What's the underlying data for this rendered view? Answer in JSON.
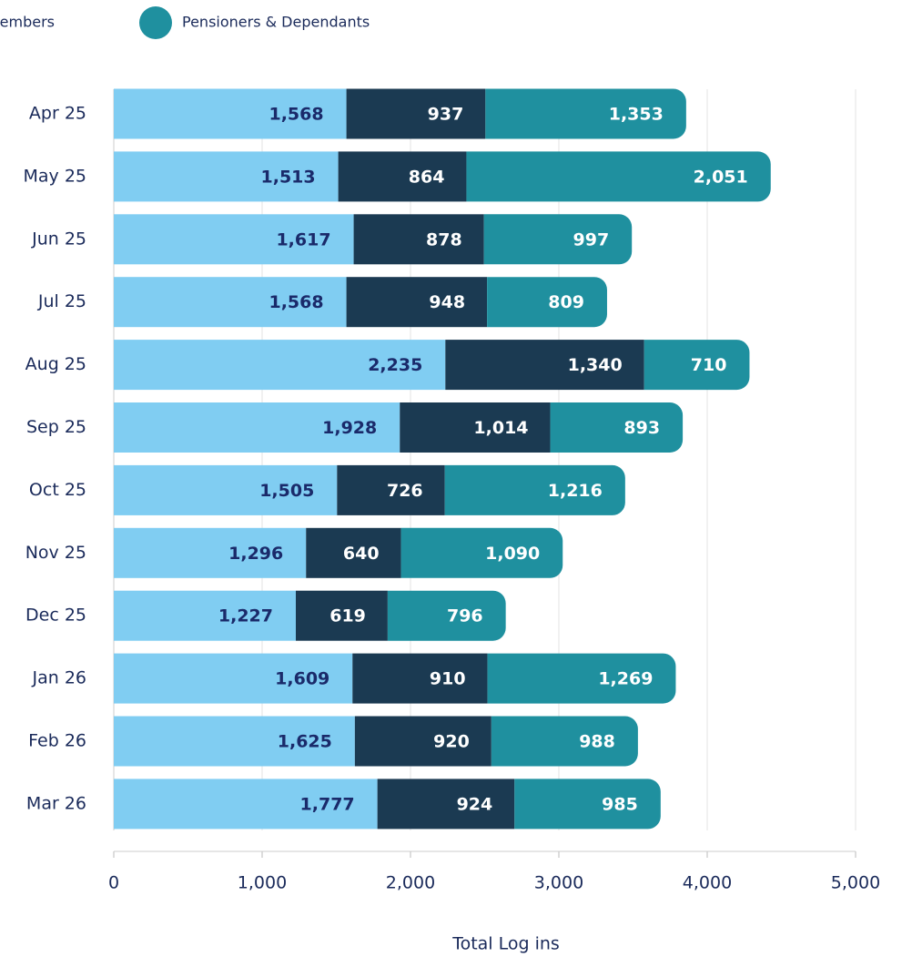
{
  "chart_data": {
    "type": "stacked-barh",
    "xlabel": "Total Log ins",
    "categories": [
      "Apr 25",
      "May 25",
      "Jun 25",
      "Jul 25",
      "Aug 25",
      "Sep 25",
      "Oct 25",
      "Nov 25",
      "Dec 25",
      "Jan 26",
      "Feb 26",
      "Mar 26"
    ],
    "series": [
      {
        "color": "#80cdf2",
        "values": [
          1568,
          1513,
          1617,
          1568,
          2235,
          1928,
          1505,
          1296,
          1227,
          1609,
          1625,
          1777
        ],
        "value_labels": [
          "1,568",
          "1,513",
          "1,617",
          "1,568",
          "2,235",
          "1,928",
          "1,505",
          "1,296",
          "1,227",
          "1,609",
          "1,625",
          "1,777"
        ]
      },
      {
        "name": "embers",
        "color": "#1b3a52",
        "values": [
          937,
          864,
          878,
          948,
          1340,
          1014,
          726,
          640,
          619,
          910,
          920,
          924
        ],
        "value_labels": [
          "937",
          "864",
          "878",
          "948",
          "1,340",
          "1,014",
          "726",
          "640",
          "619",
          "910",
          "920",
          "924"
        ]
      },
      {
        "name": "Pensioners & Dependants",
        "color": "#1f909f",
        "values": [
          1353,
          2051,
          997,
          809,
          710,
          893,
          1216,
          1090,
          796,
          1269,
          988,
          985
        ],
        "value_labels": [
          "1,353",
          "2,051",
          "997",
          "809",
          "710",
          "893",
          "1,216",
          "1,090",
          "796",
          "1,269",
          "988",
          "985"
        ]
      }
    ],
    "xlim": [
      0,
      5000
    ],
    "xticks": [
      0,
      {
        "value": 1000,
        "label": "1,000"
      },
      {
        "value": 2000,
        "label": "2,000"
      },
      {
        "value": 3000,
        "label": "3,000"
      },
      {
        "value": 4000,
        "label": "4,000"
      },
      {
        "value": 5000,
        "label": "5,000"
      }
    ],
    "grid": true
  }
}
